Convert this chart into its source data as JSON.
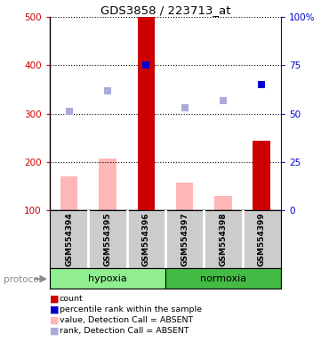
{
  "title": "GDS3858 / 223713_at",
  "samples": [
    "GSM554394",
    "GSM554395",
    "GSM554396",
    "GSM554397",
    "GSM554398",
    "GSM554399"
  ],
  "groups": [
    "hypoxia",
    "hypoxia",
    "hypoxia",
    "normoxia",
    "normoxia",
    "normoxia"
  ],
  "count_values": [
    null,
    null,
    500,
    null,
    null,
    245
  ],
  "count_color": "#CC0000",
  "percentile_values": [
    null,
    null,
    400,
    null,
    null,
    360
  ],
  "percentile_color": "#0000CC",
  "value_absent": [
    170,
    207,
    null,
    157,
    130,
    null
  ],
  "value_absent_color": "#FFB6B6",
  "rank_absent": [
    305,
    347,
    null,
    312,
    327,
    null
  ],
  "rank_absent_color": "#AAAADD",
  "ylim_left": [
    100,
    500
  ],
  "ylim_right": [
    0,
    100
  ],
  "yticks_left": [
    100,
    200,
    300,
    400,
    500
  ],
  "yticks_right": [
    0,
    25,
    50,
    75,
    100
  ],
  "ytick_labels_right": [
    "0",
    "25",
    "50",
    "75",
    "100%"
  ],
  "sample_bg_color": "#CCCCCC",
  "plot_bg_color": "#FFFFFF",
  "left_axis_color": "#CC0000",
  "right_axis_color": "#0000CC",
  "hypoxia_color": "#90EE90",
  "normoxia_color": "#44BB44",
  "legend_items": [
    {
      "label": "count",
      "color": "#CC0000"
    },
    {
      "label": "percentile rank within the sample",
      "color": "#0000CC"
    },
    {
      "label": "value, Detection Call = ABSENT",
      "color": "#FFB6B6"
    },
    {
      "label": "rank, Detection Call = ABSENT",
      "color": "#AAAADD"
    }
  ]
}
